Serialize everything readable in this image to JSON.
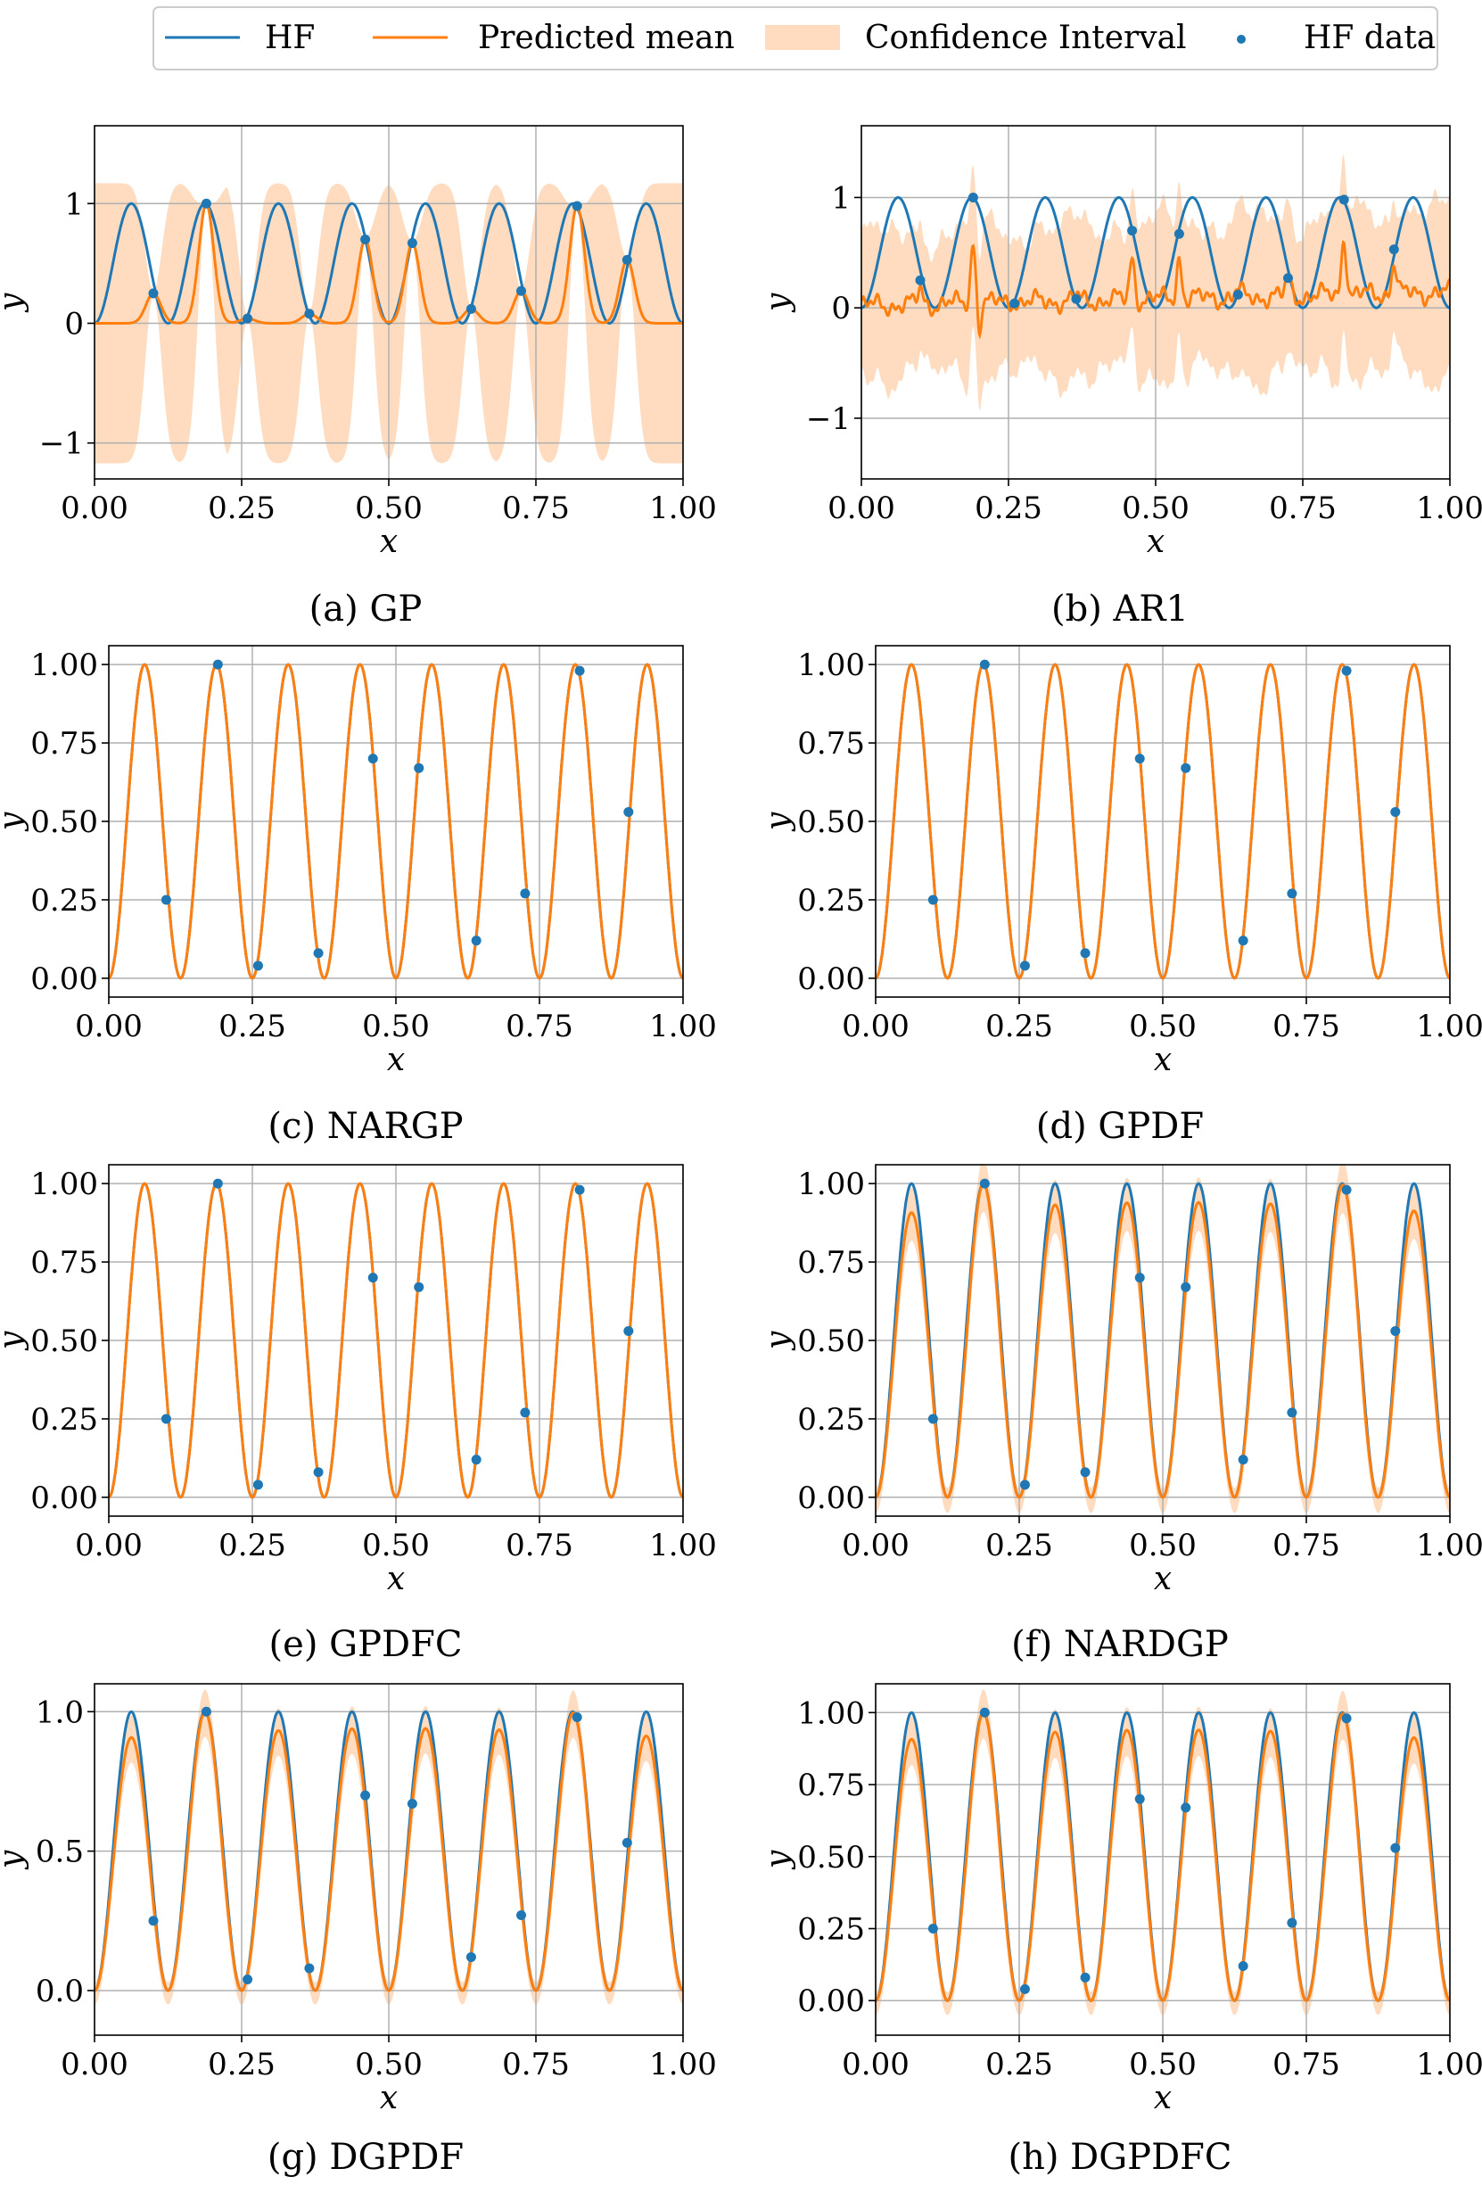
{
  "legend": {
    "entries": [
      {
        "label": "HF",
        "kind": "line",
        "color": "#1f77b4"
      },
      {
        "label": "Predicted mean",
        "kind": "line",
        "color": "#ff7f0e"
      },
      {
        "label": "Confidence Interval",
        "kind": "patch",
        "color": "#ffdcc0"
      },
      {
        "label": "HF data",
        "kind": "marker",
        "color": "#1f77b4"
      }
    ]
  },
  "colors": {
    "hf": "#1f77b4",
    "mean": "#ff7f0e",
    "ci": "#ffdcc0",
    "grid": "#b0b0b0"
  },
  "hf_function": "sin^2(8*pi*x)",
  "chart_data": [
    {
      "type": "line",
      "caption": "(a) GP",
      "xlabel": "x",
      "ylabel": "y",
      "xlim": [
        0,
        1
      ],
      "ylim": [
        -1.3,
        1.65
      ],
      "xticks": [
        "0.00",
        "0.25",
        "0.50",
        "0.75",
        "1.00"
      ],
      "yticks": [
        -1,
        0,
        1
      ],
      "ytick_labels": [
        "−1",
        "0",
        "1"
      ],
      "grid": true,
      "model": "gp",
      "series": [
        {
          "name": "HF",
          "values": "sin^2(8*pi*x), x in [0,1]"
        },
        {
          "name": "Predicted mean",
          "values": "≈0 away from data, peaks through HF data points"
        },
        {
          "name": "Confidence Interval",
          "values": "≈[-1.15, 1.15] away from data, narrow near data"
        }
      ],
      "hf_data": {
        "x": [
          0.1,
          0.19,
          0.26,
          0.365,
          0.46,
          0.54,
          0.64,
          0.725,
          0.82,
          0.905
        ],
        "y": [
          0.25,
          1.0,
          0.04,
          0.08,
          0.7,
          0.67,
          0.12,
          0.27,
          0.98,
          0.53
        ]
      }
    },
    {
      "type": "line",
      "caption": "(b) AR1",
      "xlabel": "x",
      "ylabel": "y",
      "xlim": [
        0,
        1
      ],
      "ylim": [
        -1.55,
        1.65
      ],
      "xticks": [
        "0.00",
        "0.25",
        "0.50",
        "0.75",
        "1.00"
      ],
      "yticks": [
        -1,
        0,
        1
      ],
      "ytick_labels": [
        "−1",
        "0",
        "1"
      ],
      "grid": true,
      "model": "ar1",
      "series": [
        {
          "name": "HF",
          "values": "sin^2(8*pi*x), x in [0,1]"
        },
        {
          "name": "Predicted mean",
          "values": "noisy, ≈0 to 0.2, spikes near data points"
        },
        {
          "name": "Confidence Interval",
          "values": "≈[-0.7, 0.7], wider to the right"
        }
      ],
      "hf_data": {
        "x": [
          0.1,
          0.19,
          0.26,
          0.365,
          0.46,
          0.54,
          0.64,
          0.725,
          0.82,
          0.905
        ],
        "y": [
          0.25,
          1.0,
          0.04,
          0.08,
          0.7,
          0.67,
          0.12,
          0.27,
          0.98,
          0.53
        ]
      }
    },
    {
      "type": "line",
      "caption": "(c) NARGP",
      "xlabel": "x",
      "ylabel": "y",
      "xlim": [
        0,
        1
      ],
      "ylim": [
        -0.06,
        1.06
      ],
      "xticks": [
        "0.00",
        "0.25",
        "0.50",
        "0.75",
        "1.00"
      ],
      "yticks": [
        0,
        0.25,
        0.5,
        0.75,
        1.0
      ],
      "ytick_labels": [
        "0.00",
        "0.25",
        "0.50",
        "0.75",
        "1.00"
      ],
      "grid": true,
      "model": "exact",
      "series": [
        {
          "name": "HF",
          "values": "sin^2(8*pi*x)"
        },
        {
          "name": "Predicted mean",
          "values": "matches HF exactly"
        }
      ],
      "hf_data": {
        "x": [
          0.1,
          0.19,
          0.26,
          0.365,
          0.46,
          0.54,
          0.64,
          0.725,
          0.82,
          0.905
        ],
        "y": [
          0.25,
          1.0,
          0.04,
          0.08,
          0.7,
          0.67,
          0.12,
          0.27,
          0.98,
          0.53
        ]
      }
    },
    {
      "type": "line",
      "caption": "(d) GPDF",
      "xlabel": "x",
      "ylabel": "y",
      "xlim": [
        0,
        1
      ],
      "ylim": [
        -0.06,
        1.06
      ],
      "xticks": [
        "0.00",
        "0.25",
        "0.50",
        "0.75",
        "1.00"
      ],
      "yticks": [
        0,
        0.25,
        0.5,
        0.75,
        1.0
      ],
      "ytick_labels": [
        "0.00",
        "0.25",
        "0.50",
        "0.75",
        "1.00"
      ],
      "grid": true,
      "model": "exact",
      "series": [
        {
          "name": "HF",
          "values": "sin^2(8*pi*x)"
        },
        {
          "name": "Predicted mean",
          "values": "matches HF exactly"
        }
      ],
      "hf_data": {
        "x": [
          0.1,
          0.19,
          0.26,
          0.365,
          0.46,
          0.54,
          0.64,
          0.725,
          0.82,
          0.905
        ],
        "y": [
          0.25,
          1.0,
          0.04,
          0.08,
          0.7,
          0.67,
          0.12,
          0.27,
          0.98,
          0.53
        ]
      }
    },
    {
      "type": "line",
      "caption": "(e) GPDFC",
      "xlabel": "x",
      "ylabel": "y",
      "xlim": [
        0,
        1
      ],
      "ylim": [
        -0.06,
        1.06
      ],
      "xticks": [
        "0.00",
        "0.25",
        "0.50",
        "0.75",
        "1.00"
      ],
      "yticks": [
        0,
        0.25,
        0.5,
        0.75,
        1.0
      ],
      "ytick_labels": [
        "0.00",
        "0.25",
        "0.50",
        "0.75",
        "1.00"
      ],
      "grid": true,
      "model": "exact",
      "series": [
        {
          "name": "HF",
          "values": "sin^2(8*pi*x)"
        },
        {
          "name": "Predicted mean",
          "values": "matches HF exactly"
        }
      ],
      "hf_data": {
        "x": [
          0.1,
          0.19,
          0.26,
          0.365,
          0.46,
          0.54,
          0.64,
          0.725,
          0.82,
          0.905
        ],
        "y": [
          0.25,
          1.0,
          0.04,
          0.08,
          0.7,
          0.67,
          0.12,
          0.27,
          0.98,
          0.53
        ]
      }
    },
    {
      "type": "line",
      "caption": "(f) NARDGP",
      "xlabel": "x",
      "ylabel": "y",
      "xlim": [
        0,
        1
      ],
      "ylim": [
        -0.06,
        1.06
      ],
      "xticks": [
        "0.00",
        "0.25",
        "0.50",
        "0.75",
        "1.00"
      ],
      "yticks": [
        0,
        0.25,
        0.5,
        0.75,
        1.0
      ],
      "ytick_labels": [
        "0.00",
        "0.25",
        "0.50",
        "0.75",
        "1.00"
      ],
      "grid": true,
      "model": "damped",
      "series": [
        {
          "name": "HF",
          "values": "sin^2(8*pi*x)"
        },
        {
          "name": "Predicted mean",
          "values": "peaks ≈0.87–0.95 except near data (≈1.0)"
        },
        {
          "name": "Confidence Interval",
          "values": "narrow band around mean"
        }
      ],
      "hf_data": {
        "x": [
          0.1,
          0.19,
          0.26,
          0.365,
          0.46,
          0.54,
          0.64,
          0.725,
          0.82,
          0.905
        ],
        "y": [
          0.25,
          1.0,
          0.04,
          0.08,
          0.7,
          0.67,
          0.12,
          0.27,
          0.98,
          0.53
        ]
      }
    },
    {
      "type": "line",
      "caption": "(g) DGPDF",
      "xlabel": "x",
      "ylabel": "y",
      "xlim": [
        0,
        1
      ],
      "ylim": [
        -0.16,
        1.1
      ],
      "xticks": [
        "0.00",
        "0.25",
        "0.50",
        "0.75",
        "1.00"
      ],
      "yticks": [
        0,
        0.5,
        1.0
      ],
      "ytick_labels": [
        "0.0",
        "0.5",
        "1.0"
      ],
      "grid": true,
      "model": "damped",
      "series": [
        {
          "name": "HF",
          "values": "sin^2(8*pi*x)"
        },
        {
          "name": "Predicted mean",
          "values": "peaks ≈0.92–0.97"
        },
        {
          "name": "Confidence Interval",
          "values": "narrow band around mean"
        }
      ],
      "hf_data": {
        "x": [
          0.1,
          0.19,
          0.26,
          0.365,
          0.46,
          0.54,
          0.64,
          0.725,
          0.82,
          0.905
        ],
        "y": [
          0.25,
          1.0,
          0.04,
          0.08,
          0.7,
          0.67,
          0.12,
          0.27,
          0.98,
          0.53
        ]
      }
    },
    {
      "type": "line",
      "caption": "(h) DGPDFC",
      "xlabel": "x",
      "ylabel": "y",
      "xlim": [
        0,
        1
      ],
      "ylim": [
        -0.12,
        1.1
      ],
      "xticks": [
        "0.00",
        "0.25",
        "0.50",
        "0.75",
        "1.00"
      ],
      "yticks": [
        0,
        0.25,
        0.5,
        0.75,
        1.0
      ],
      "ytick_labels": [
        "0.00",
        "0.25",
        "0.50",
        "0.75",
        "1.00"
      ],
      "grid": true,
      "model": "damped",
      "series": [
        {
          "name": "HF",
          "values": "sin^2(8*pi*x)"
        },
        {
          "name": "Predicted mean",
          "values": "peaks ≈0.92–0.97"
        },
        {
          "name": "Confidence Interval",
          "values": "narrow band around mean"
        }
      ],
      "hf_data": {
        "x": [
          0.1,
          0.19,
          0.26,
          0.365,
          0.46,
          0.54,
          0.64,
          0.725,
          0.82,
          0.905
        ],
        "y": [
          0.25,
          1.0,
          0.04,
          0.08,
          0.7,
          0.67,
          0.12,
          0.27,
          0.98,
          0.53
        ]
      }
    }
  ]
}
